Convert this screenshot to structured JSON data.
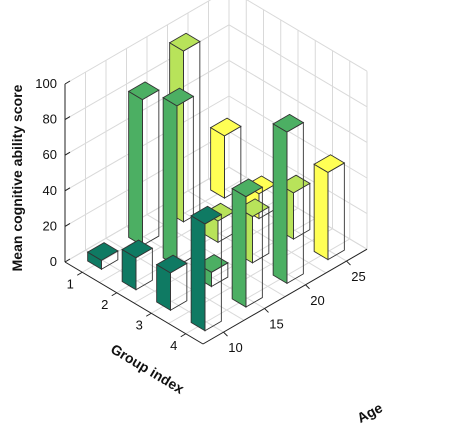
{
  "chart_data": {
    "type": "bar3d",
    "zlabel": "Mean cognitive ability score",
    "xlabel": "Group index",
    "ylabel": "Age",
    "z_ticks": [
      "0",
      "20",
      "40",
      "60",
      "80",
      "100"
    ],
    "x_ticks": [
      "1",
      "2",
      "3",
      "4"
    ],
    "y_ticks": [
      "10",
      "15",
      "20",
      "25"
    ],
    "zlim": [
      0,
      100
    ],
    "grid": true,
    "bars": [
      {
        "group": 1,
        "age": 10,
        "value": 5,
        "color": "#0f7a63"
      },
      {
        "group": 2,
        "age": 10,
        "value": 18,
        "color": "#0f7a63"
      },
      {
        "group": 3,
        "age": 10,
        "value": 21,
        "color": "#0f7a63"
      },
      {
        "group": 4,
        "age": 10,
        "value": 60,
        "color": "#0f7a63"
      },
      {
        "group": 1,
        "age": 15,
        "value": 82,
        "color": "#4caf63"
      },
      {
        "group": 2,
        "age": 15,
        "value": 90,
        "color": "#4caf63"
      },
      {
        "group": 3,
        "age": 15,
        "value": 8,
        "color": "#4caf63"
      },
      {
        "group": 4,
        "age": 15,
        "value": 62,
        "color": "#4caf63"
      },
      {
        "group": 1,
        "age": 20,
        "value": 96,
        "color": "#b8e35a"
      },
      {
        "group": 2,
        "age": 20,
        "value": 12,
        "color": "#b8e35a"
      },
      {
        "group": 3,
        "age": 20,
        "value": 26,
        "color": "#b8e35a"
      },
      {
        "group": 4,
        "age": 20,
        "value": 85,
        "color": "#4caf63"
      },
      {
        "group": 1,
        "age": 25,
        "value": 35,
        "color": "#ffff55"
      },
      {
        "group": 2,
        "age": 25,
        "value": 14,
        "color": "#ffff55"
      },
      {
        "group": 3,
        "age": 25,
        "value": 26,
        "color": "#b8e35a"
      },
      {
        "group": 4,
        "age": 25,
        "value": 49,
        "color": "#ffff55"
      }
    ]
  }
}
